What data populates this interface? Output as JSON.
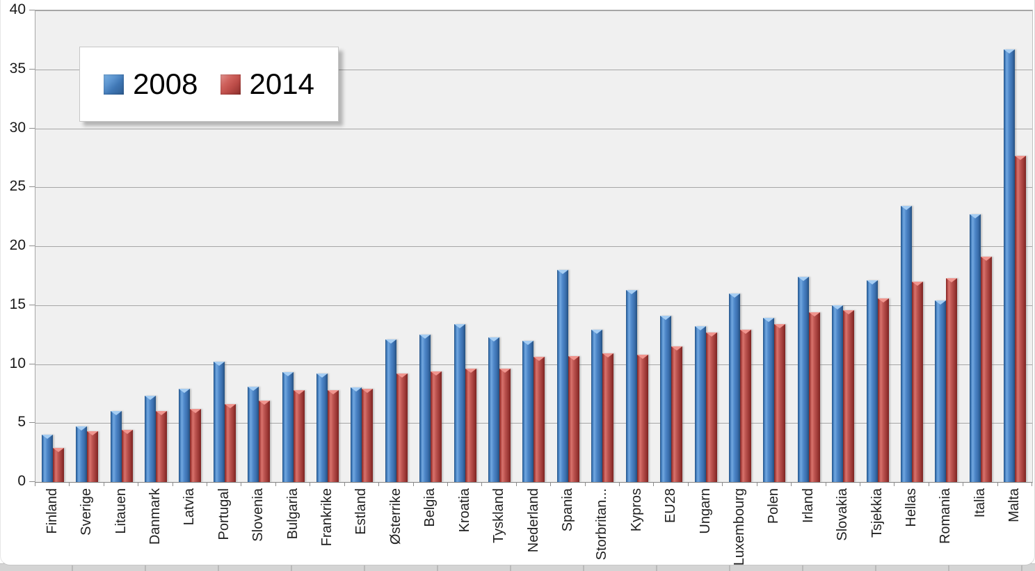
{
  "chart_data": {
    "type": "bar",
    "title": "",
    "xlabel": "",
    "ylabel": "",
    "ylim": [
      0,
      40
    ],
    "yticks": [
      0,
      5,
      10,
      15,
      20,
      25,
      30,
      35,
      40
    ],
    "grid": true,
    "legend_position": "top-left",
    "plot_background": "#F0F0F0",
    "gridline_color": "#A6A6A6",
    "categories": [
      "Finland",
      "Sverige",
      "Litauen",
      "Danmark",
      "Latvia",
      "Portugal",
      "Slovenia",
      "Bulgaria",
      "Frankrike",
      "Estland",
      "Østerrike",
      "Belgia",
      "Kroatia",
      "Tyskland",
      "Nederland",
      "Spania",
      "Storbritan...",
      "Kypros",
      "EU28",
      "Ungarn",
      "Luxembourg",
      "Polen",
      "Irland",
      "Slovakia",
      "Tsjekkia",
      "Hellas",
      "Romania",
      "Italia",
      "Malta"
    ],
    "series": [
      {
        "name": "2008",
        "color": "#4F81BD",
        "values": [
          4.0,
          4.7,
          6.0,
          7.3,
          7.9,
          10.2,
          8.1,
          9.3,
          9.2,
          8.0,
          12.1,
          12.5,
          13.4,
          12.3,
          12.0,
          18.0,
          12.9,
          16.3,
          14.1,
          13.2,
          16.0,
          13.9,
          17.4,
          15.0,
          17.1,
          23.4,
          15.4,
          22.7,
          36.7
        ]
      },
      {
        "name": "2014",
        "color": "#C0504D",
        "values": [
          2.9,
          4.3,
          4.4,
          6.0,
          6.2,
          6.6,
          6.9,
          7.8,
          7.8,
          7.9,
          9.2,
          9.4,
          9.6,
          9.6,
          10.6,
          10.7,
          10.9,
          10.8,
          11.5,
          12.7,
          12.9,
          13.4,
          14.4,
          14.6,
          15.6,
          17.0,
          17.3,
          19.1,
          27.7
        ]
      }
    ]
  },
  "legend": {
    "items": [
      {
        "label": "2008",
        "color": "#4F81BD"
      },
      {
        "label": "2014",
        "color": "#C0504D"
      }
    ]
  }
}
